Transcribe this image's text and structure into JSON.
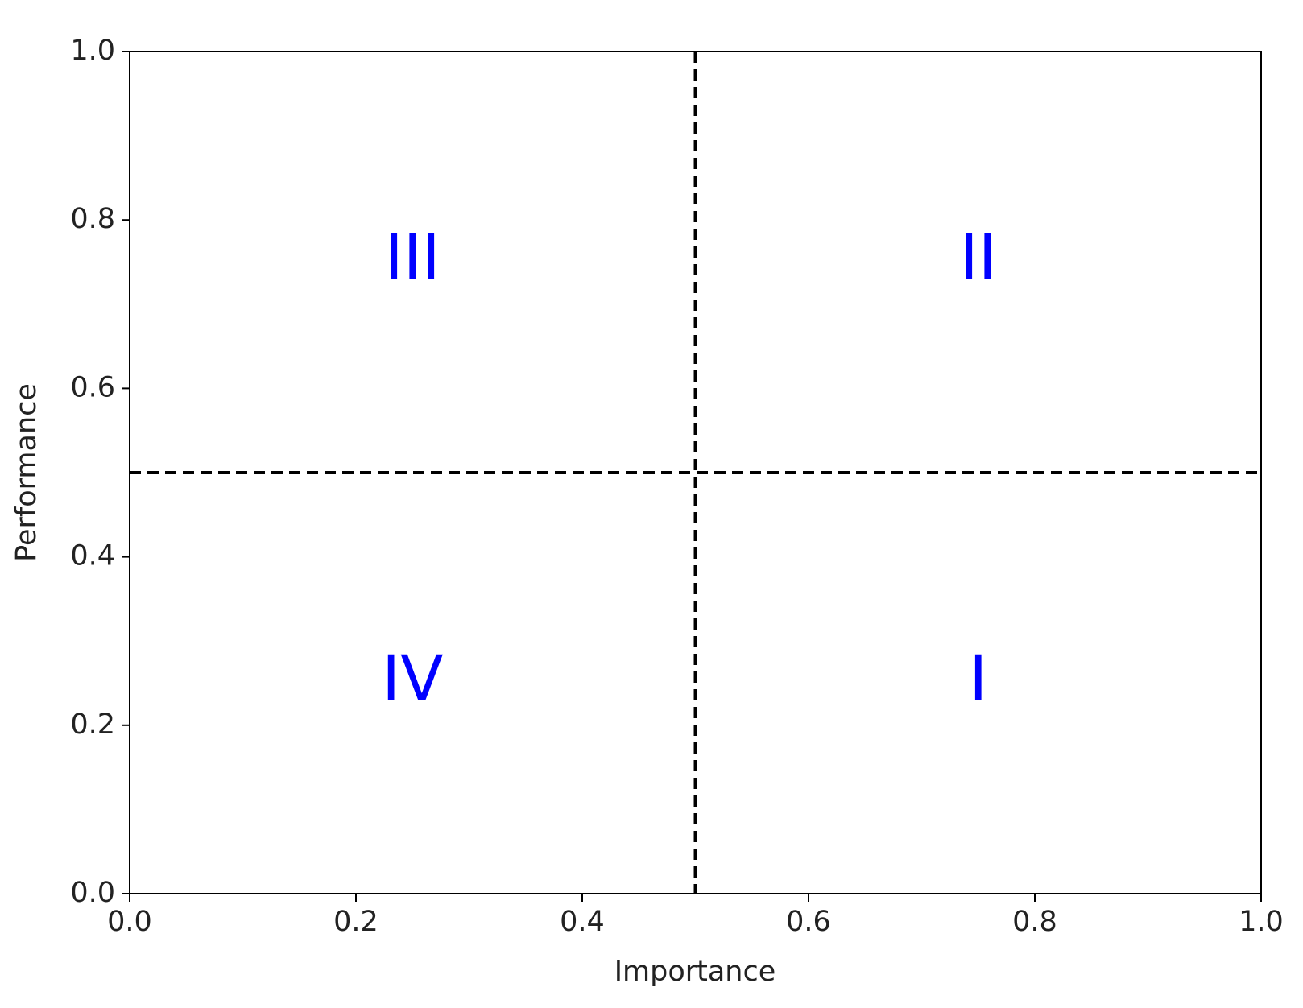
{
  "chart_data": {
    "type": "quadrant",
    "xlabel": "Importance",
    "ylabel": "Performance",
    "xlim": [
      0,
      1
    ],
    "ylim": [
      0,
      1
    ],
    "xticks": [
      {
        "value": 0,
        "label": "0.0"
      },
      0.2,
      0.4,
      0.6,
      0.8,
      {
        "value": 1,
        "label": "1.0"
      }
    ],
    "yticks": [
      {
        "value": 0,
        "label": "0.0"
      },
      0.2,
      0.4,
      0.6,
      0.8,
      {
        "value": 1,
        "label": "1.0"
      }
    ],
    "vlines": [
      0.5
    ],
    "hlines": [
      0.5
    ],
    "line_style": "dashed",
    "line_color": "#000000",
    "annotations": [
      {
        "text": "III",
        "x": 0.25,
        "y": 0.75
      },
      {
        "text": "II",
        "x": 0.75,
        "y": 0.75
      },
      {
        "text": "IV",
        "x": 0.25,
        "y": 0.25
      },
      {
        "text": "I",
        "x": 0.75,
        "y": 0.25
      }
    ],
    "annotation_color": "#0000ff"
  }
}
